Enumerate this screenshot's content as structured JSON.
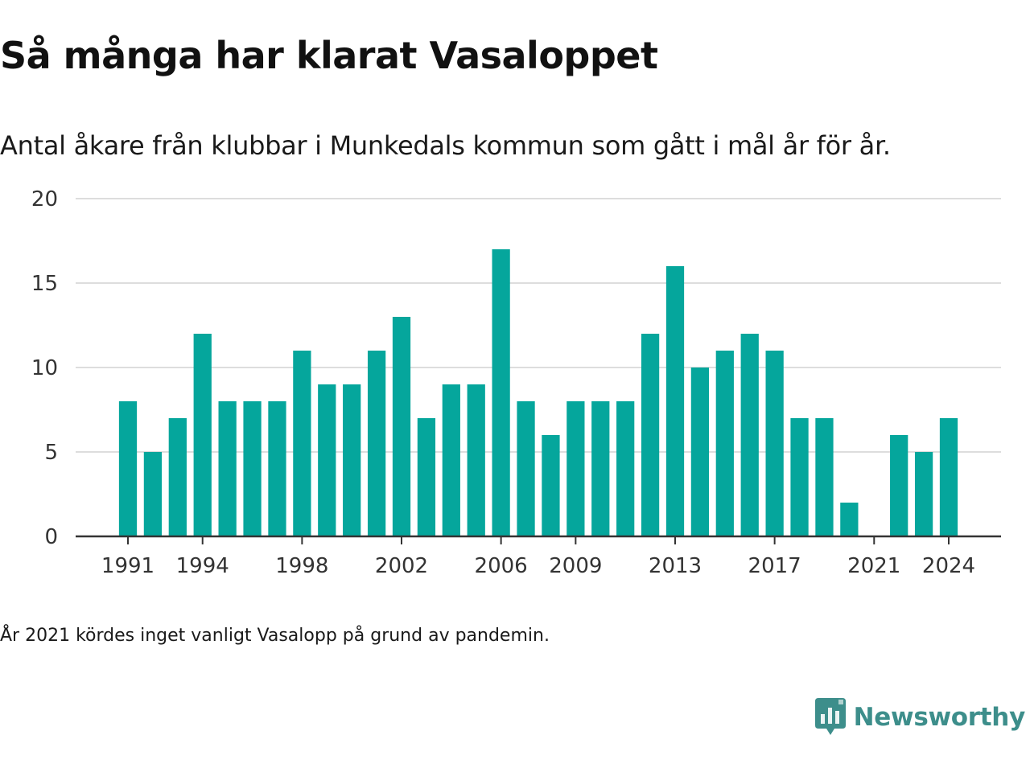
{
  "header": {
    "title": "Så många har klarat Vasaloppet",
    "subtitle": "Antal åkare från klubbar i Munkedals kommun som gått i mål år för år."
  },
  "footer": {
    "note": "År 2021 kördes inget vanligt Vasalopp på grund av pandemin.",
    "brand_name": "Newsworthy"
  },
  "colors": {
    "bar": "#05a69c",
    "grid": "#dddddd",
    "axis": "#333333",
    "brand": "#3d8e8b"
  },
  "chart_data": {
    "type": "bar",
    "title": "Så många har klarat Vasaloppet",
    "subtitle": "Antal åkare från klubbar i Munkedals kommun som gått i mål år för år.",
    "categories": [
      1991,
      1992,
      1993,
      1994,
      1995,
      1996,
      1997,
      1998,
      1999,
      2000,
      2001,
      2002,
      2003,
      2004,
      2005,
      2006,
      2007,
      2008,
      2009,
      2010,
      2011,
      2012,
      2013,
      2014,
      2015,
      2016,
      2017,
      2018,
      2019,
      2020,
      2021,
      2022,
      2023,
      2024
    ],
    "values": [
      8,
      5,
      7,
      12,
      8,
      8,
      8,
      11,
      9,
      9,
      11,
      13,
      7,
      9,
      9,
      17,
      8,
      6,
      8,
      8,
      8,
      12,
      16,
      10,
      11,
      12,
      11,
      7,
      7,
      2,
      null,
      6,
      5,
      7
    ],
    "xticks": [
      "1991",
      "1994",
      "1998",
      "2002",
      "2006",
      "2009",
      "2013",
      "2017",
      "2021",
      "2024"
    ],
    "yticks": [
      0,
      5,
      10,
      15,
      20
    ],
    "ylim": [
      0,
      20
    ],
    "xlabel": "",
    "ylabel": "",
    "grid": true,
    "legend": "none"
  }
}
